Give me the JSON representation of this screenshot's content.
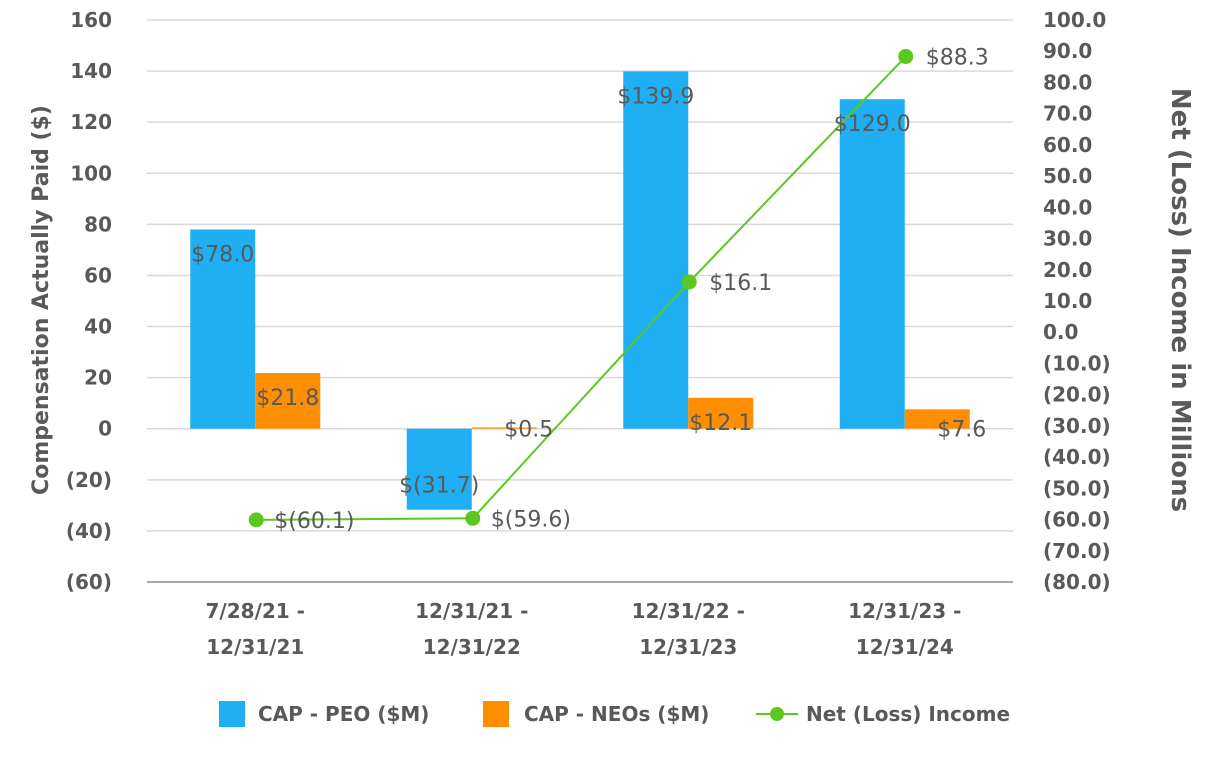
{
  "chart_data": {
    "type": "bar",
    "categories": [
      [
        "7/28/21 -",
        "12/31/21"
      ],
      [
        "12/31/21 -",
        "12/31/22"
      ],
      [
        "12/31/22 -",
        "12/31/23"
      ],
      [
        "12/31/23 -",
        "12/31/24"
      ]
    ],
    "series": [
      {
        "name": "CAP - PEO ($M)",
        "type": "bar",
        "axis": "left",
        "color": "#1faff2",
        "values": [
          78.0,
          -31.7,
          139.9,
          129.0
        ],
        "labels": [
          "$78.0",
          "$(31.7)",
          "$139.9",
          "$129.0"
        ]
      },
      {
        "name": "CAP - NEOs ($M)",
        "type": "bar",
        "axis": "left",
        "color": "#ff8f00",
        "values": [
          21.8,
          0.5,
          12.1,
          7.6
        ],
        "labels": [
          "$21.8",
          "$0.5",
          "$12.1",
          "$7.6"
        ]
      },
      {
        "name": "Net (Loss) Income",
        "type": "line",
        "axis": "right",
        "color": "#5cc71e",
        "values": [
          -60.1,
          -59.6,
          16.1,
          88.3
        ],
        "labels": [
          "$(60.1)",
          "$(59.6)",
          "$16.1",
          "$88.3"
        ]
      }
    ],
    "ylabel": "Compensation Actually Paid ($)",
    "y2label": "Net (Loss) Income in Millions",
    "ylim": [
      -60,
      160
    ],
    "y2lim": [
      -80,
      100
    ],
    "yticks": [
      160,
      140,
      120,
      100,
      80,
      60,
      40,
      20,
      0,
      -20,
      -40,
      -60
    ],
    "ytick_labels": [
      "160",
      "140",
      "120",
      "100",
      "80",
      "60",
      "40",
      "20",
      "0",
      "(20)",
      "(40)",
      "(60)"
    ],
    "y2ticks": [
      100,
      90,
      80,
      70,
      60,
      50,
      40,
      30,
      20,
      10,
      0,
      -10,
      -20,
      -30,
      -40,
      -50,
      -60,
      -70,
      -80
    ],
    "y2tick_labels": [
      "100.0",
      "90.0",
      "80.0",
      "70.0",
      "60.0",
      "50.0",
      "40.0",
      "30.0",
      "20.0",
      "10.0",
      "0.0",
      "(10.0)",
      "(20.0)",
      "(30.0)",
      "(40.0)",
      "(50.0)",
      "(60.0)",
      "(70.0)",
      "(80.0)"
    ],
    "grid": true,
    "legend": "bottom-center"
  }
}
